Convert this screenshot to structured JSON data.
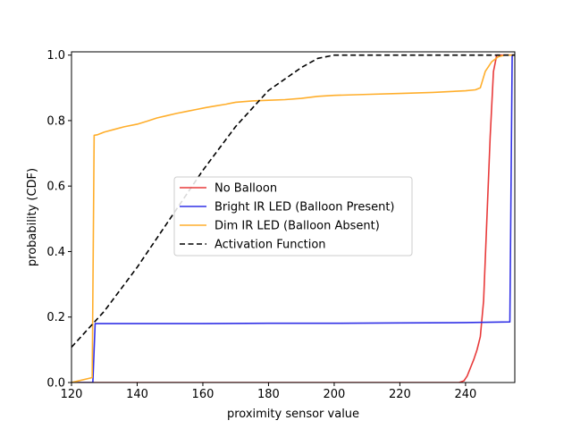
{
  "chart_data": {
    "type": "line",
    "title": "",
    "xlabel": "proximity sensor value",
    "ylabel": "probability (CDF)",
    "xlim": [
      120,
      255
    ],
    "ylim": [
      0,
      1.01
    ],
    "xticks": [
      120,
      140,
      160,
      180,
      200,
      220,
      240
    ],
    "yticks": [
      0.0,
      0.2,
      0.4,
      0.6,
      0.8,
      1.0
    ],
    "xtick_labels": [
      "120",
      "140",
      "160",
      "180",
      "200",
      "220",
      "240"
    ],
    "ytick_labels": [
      "0.0",
      "0.2",
      "0.4",
      "0.6",
      "0.8",
      "1.0"
    ],
    "grid": false,
    "legend_position": "center-left",
    "series": [
      {
        "name": "No Balloon",
        "color": "#e83a3a",
        "style": "solid",
        "x": [
          120,
          238,
          239.5,
          240.5,
          241.5,
          242.5,
          243.5,
          244.5,
          245.5,
          246.5,
          247.5,
          248.5,
          249.5,
          250.5,
          255
        ],
        "y": [
          0.0,
          0.0,
          0.005,
          0.02,
          0.045,
          0.07,
          0.1,
          0.14,
          0.25,
          0.5,
          0.75,
          0.95,
          1.0,
          1.0,
          1.0
        ]
      },
      {
        "name": "Bright IR LED (Balloon Present)",
        "color": "#3030e6",
        "style": "solid",
        "x": [
          120,
          126.5,
          127.2,
          140,
          160,
          180,
          200,
          220,
          240,
          253.5,
          254.2,
          255
        ],
        "y": [
          0.0,
          0.0,
          0.18,
          0.18,
          0.18,
          0.181,
          0.181,
          0.182,
          0.183,
          0.185,
          1.0,
          1.0
        ]
      },
      {
        "name": "Dim IR LED (Balloon Absent)",
        "color": "#ffae2b",
        "style": "solid",
        "x": [
          120,
          126.3,
          126.9,
          128,
          130,
          133,
          136,
          140,
          143,
          146,
          149,
          152,
          155,
          158,
          161,
          164,
          167,
          170,
          175,
          180,
          185,
          190,
          195,
          200,
          210,
          220,
          230,
          240,
          243,
          244.5,
          246,
          248,
          250,
          252,
          255
        ],
        "y": [
          0.0,
          0.015,
          0.755,
          0.757,
          0.765,
          0.773,
          0.781,
          0.789,
          0.798,
          0.808,
          0.815,
          0.822,
          0.828,
          0.834,
          0.84,
          0.845,
          0.85,
          0.856,
          0.86,
          0.862,
          0.864,
          0.868,
          0.874,
          0.877,
          0.88,
          0.883,
          0.886,
          0.891,
          0.894,
          0.9,
          0.95,
          0.98,
          0.995,
          1.0,
          1.0
        ]
      },
      {
        "name": "Activation Function",
        "color": "#000000",
        "style": "dashed",
        "x": [
          120,
          130,
          140,
          150,
          160,
          170,
          180,
          190,
          195,
          200,
          255
        ],
        "y": [
          0.108,
          0.218,
          0.352,
          0.5,
          0.648,
          0.782,
          0.892,
          0.962,
          0.99,
          1.0,
          1.0
        ]
      }
    ]
  }
}
